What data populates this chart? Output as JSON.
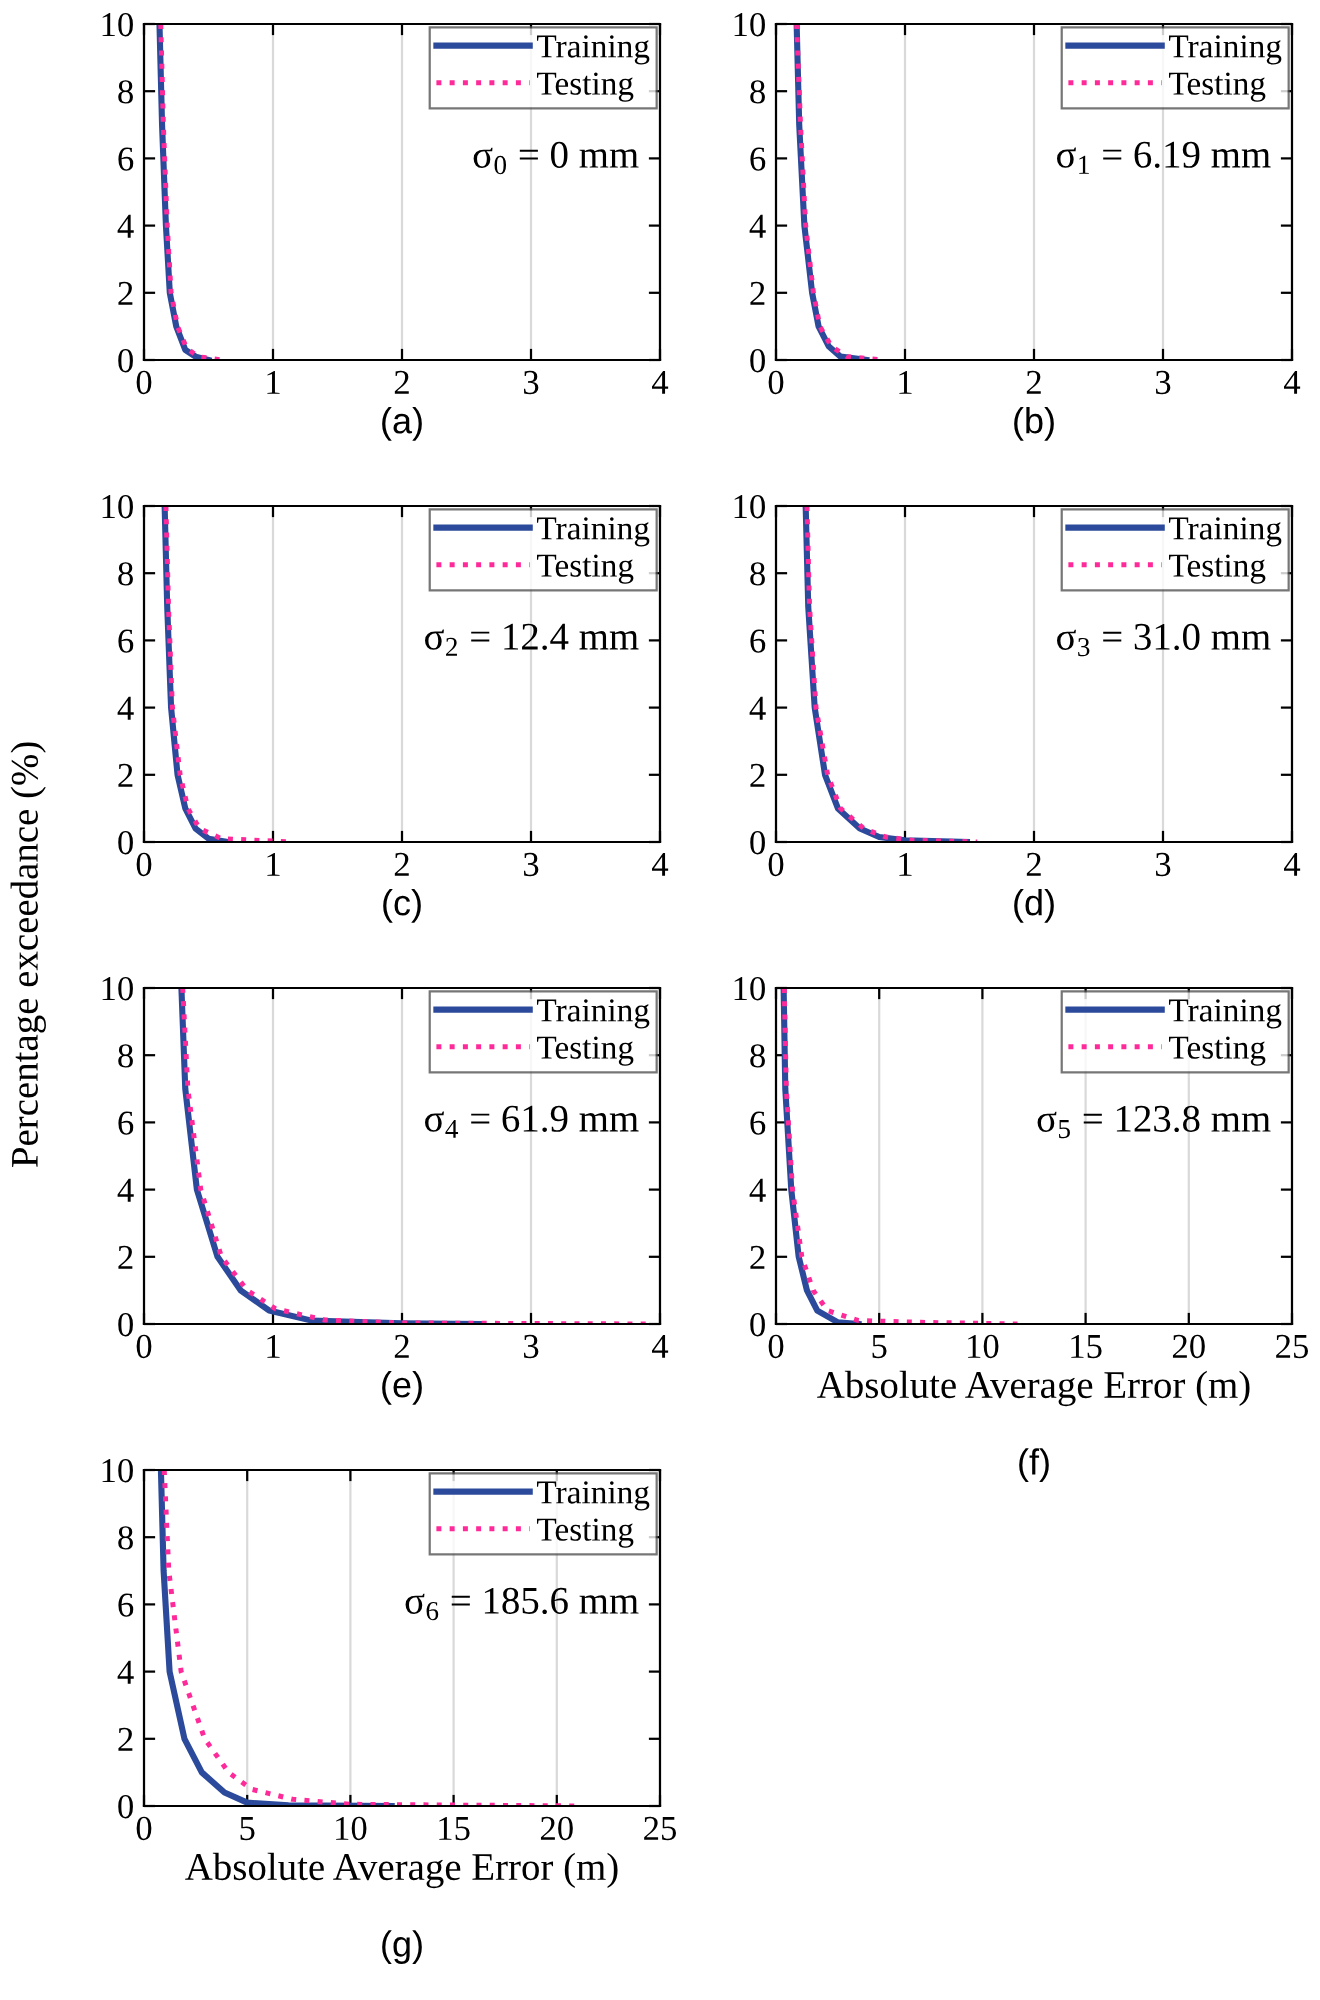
{
  "chart_data": [
    {
      "type": "line",
      "annotations": [
        "σ$_{0}$ = 0 mm",
        "(a)"
      ],
      "xlim": [
        0,
        4
      ],
      "xticks": [
        0,
        1,
        2,
        3,
        4
      ],
      "ylim": [
        0,
        10
      ],
      "yticks": [
        0,
        2,
        4,
        6,
        8,
        10
      ],
      "grid": "x",
      "legend": "top right",
      "series": [
        {
          "name": "Training",
          "color": "#2b4a9b",
          "line_style": "solid",
          "x": [
            0.12,
            0.14,
            0.17,
            0.2,
            0.25,
            0.32,
            0.4,
            0.5
          ],
          "values": [
            10,
            7,
            4,
            2,
            1,
            0.3,
            0.1,
            0
          ]
        },
        {
          "name": "Testing",
          "color": "#ff2a9a",
          "line_style": "dotted",
          "x": [
            0.13,
            0.15,
            0.18,
            0.21,
            0.26,
            0.33,
            0.42,
            0.6
          ],
          "values": [
            10,
            7,
            4,
            2,
            1,
            0.35,
            0.1,
            0
          ]
        }
      ]
    },
    {
      "type": "line",
      "annotations": [
        "σ$_{1}$ = 6.19 mm",
        "(b)"
      ],
      "xlim": [
        0,
        4
      ],
      "xticks": [
        0,
        1,
        2,
        3,
        4
      ],
      "ylim": [
        0,
        10
      ],
      "yticks": [
        0,
        2,
        4,
        6,
        8,
        10
      ],
      "grid": "x",
      "legend": "top right",
      "series": [
        {
          "name": "Training",
          "color": "#2b4a9b",
          "line_style": "solid",
          "x": [
            0.16,
            0.18,
            0.22,
            0.28,
            0.33,
            0.41,
            0.5,
            0.7
          ],
          "values": [
            10,
            7,
            4,
            2,
            1,
            0.4,
            0.1,
            0
          ]
        },
        {
          "name": "Testing",
          "color": "#ff2a9a",
          "line_style": "dotted",
          "x": [
            0.16,
            0.19,
            0.23,
            0.29,
            0.34,
            0.43,
            0.55,
            0.83
          ],
          "values": [
            10,
            7,
            4,
            2,
            1,
            0.4,
            0.1,
            0
          ]
        }
      ]
    },
    {
      "type": "line",
      "annotations": [
        "σ$_{2}$ = 12.4 mm",
        "(c)"
      ],
      "xlim": [
        0,
        4
      ],
      "xticks": [
        0,
        1,
        2,
        3,
        4
      ],
      "ylim": [
        0,
        10
      ],
      "yticks": [
        0,
        2,
        4,
        6,
        8,
        10
      ],
      "grid": "x",
      "legend": "top right",
      "series": [
        {
          "name": "Training",
          "color": "#2b4a9b",
          "line_style": "solid",
          "x": [
            0.16,
            0.18,
            0.21,
            0.26,
            0.32,
            0.4,
            0.5,
            0.65
          ],
          "values": [
            10,
            7,
            4,
            2,
            1,
            0.4,
            0.1,
            0
          ]
        },
        {
          "name": "Testing",
          "color": "#ff2a9a",
          "line_style": "dotted",
          "x": [
            0.17,
            0.19,
            0.22,
            0.28,
            0.34,
            0.43,
            0.6,
            1.14
          ],
          "values": [
            10,
            7,
            4,
            2,
            1,
            0.4,
            0.1,
            0
          ]
        }
      ]
    },
    {
      "type": "line",
      "annotations": [
        "σ$_{3}$ = 31.0 mm",
        "(d)"
      ],
      "xlim": [
        0,
        4
      ],
      "xticks": [
        0,
        1,
        2,
        3,
        4
      ],
      "ylim": [
        0,
        10
      ],
      "yticks": [
        0,
        2,
        4,
        6,
        8,
        10
      ],
      "grid": "x",
      "legend": "top right",
      "series": [
        {
          "name": "Training",
          "color": "#2b4a9b",
          "line_style": "solid",
          "x": [
            0.23,
            0.25,
            0.3,
            0.38,
            0.48,
            0.65,
            0.8,
            1.0,
            1.48
          ],
          "values": [
            10,
            7,
            4,
            2,
            1,
            0.4,
            0.15,
            0.05,
            0
          ]
        },
        {
          "name": "Testing",
          "color": "#ff2a9a",
          "line_style": "dotted",
          "x": [
            0.24,
            0.26,
            0.31,
            0.4,
            0.5,
            0.68,
            0.85,
            1.05,
            1.56
          ],
          "values": [
            10,
            7,
            4,
            2,
            1,
            0.4,
            0.15,
            0.05,
            0
          ]
        }
      ]
    },
    {
      "type": "line",
      "ylabel": "Percentage exceedance (%)",
      "annotations": [
        "σ$_{4}$ = 61.9 mm",
        "(e)"
      ],
      "xlim": [
        0,
        4
      ],
      "xticks": [
        0,
        1,
        2,
        3,
        4
      ],
      "ylim": [
        0,
        10
      ],
      "yticks": [
        0,
        2,
        4,
        6,
        8,
        10
      ],
      "grid": "x",
      "legend": "top right",
      "series": [
        {
          "name": "Training",
          "color": "#2b4a9b",
          "line_style": "solid",
          "x": [
            0.29,
            0.32,
            0.41,
            0.57,
            0.75,
            0.97,
            1.3,
            2,
            2.6
          ],
          "values": [
            10,
            7,
            4,
            2,
            1,
            0.4,
            0.1,
            0.02,
            0
          ]
        },
        {
          "name": "Testing",
          "color": "#ff2a9a",
          "line_style": "dotted",
          "x": [
            0.3,
            0.34,
            0.44,
            0.6,
            0.8,
            1.02,
            1.4,
            2,
            3.9
          ],
          "values": [
            10,
            7,
            4,
            2,
            1,
            0.45,
            0.12,
            0.03,
            0
          ]
        }
      ]
    },
    {
      "type": "line",
      "xlabel": "Absolute Average Error (m)",
      "annotations": [
        "σ$_{5}$ = 123.8 mm",
        "(f)"
      ],
      "xlim": [
        0,
        25
      ],
      "xticks": [
        0,
        5,
        10,
        15,
        20,
        25
      ],
      "ylim": [
        0,
        10
      ],
      "yticks": [
        0,
        2,
        4,
        6,
        8,
        10
      ],
      "grid": "x",
      "legend": "top right",
      "series": [
        {
          "name": "Training",
          "color": "#2b4a9b",
          "line_style": "solid",
          "x": [
            0.37,
            0.45,
            0.74,
            1.1,
            1.5,
            2,
            3,
            4
          ],
          "values": [
            10,
            7,
            4,
            2,
            1,
            0.4,
            0.05,
            0
          ]
        },
        {
          "name": "Testing",
          "color": "#ff2a9a",
          "line_style": "dotted",
          "x": [
            0.4,
            0.5,
            0.8,
            1.25,
            1.8,
            2.5,
            4,
            7,
            11.7
          ],
          "values": [
            10,
            7,
            4,
            2,
            1,
            0.4,
            0.1,
            0.05,
            0
          ]
        }
      ]
    },
    {
      "type": "line",
      "xlabel": "Absolute Average Error (m)",
      "annotations": [
        "σ$_{6}$ = 185.6 mm",
        "(g)"
      ],
      "xlim": [
        0,
        25
      ],
      "xticks": [
        0,
        5,
        10,
        15,
        20,
        25
      ],
      "ylim": [
        0,
        10
      ],
      "yticks": [
        0,
        2,
        4,
        6,
        8,
        10
      ],
      "grid": "x",
      "legend": "top right",
      "series": [
        {
          "name": "Training",
          "color": "#2b4a9b",
          "line_style": "solid",
          "x": [
            0.82,
            0.95,
            1.24,
            1.96,
            2.8,
            3.9,
            5,
            7,
            12
          ],
          "values": [
            10,
            7,
            4,
            2,
            1,
            0.4,
            0.1,
            0.02,
            0
          ]
        },
        {
          "name": "Testing",
          "color": "#ff2a9a",
          "line_style": "dotted",
          "x": [
            0.98,
            1.2,
            1.8,
            2.94,
            4.1,
            5.2,
            7.2,
            10,
            21.2
          ],
          "values": [
            10,
            7,
            4,
            2,
            1,
            0.5,
            0.2,
            0.05,
            0
          ]
        }
      ]
    }
  ]
}
